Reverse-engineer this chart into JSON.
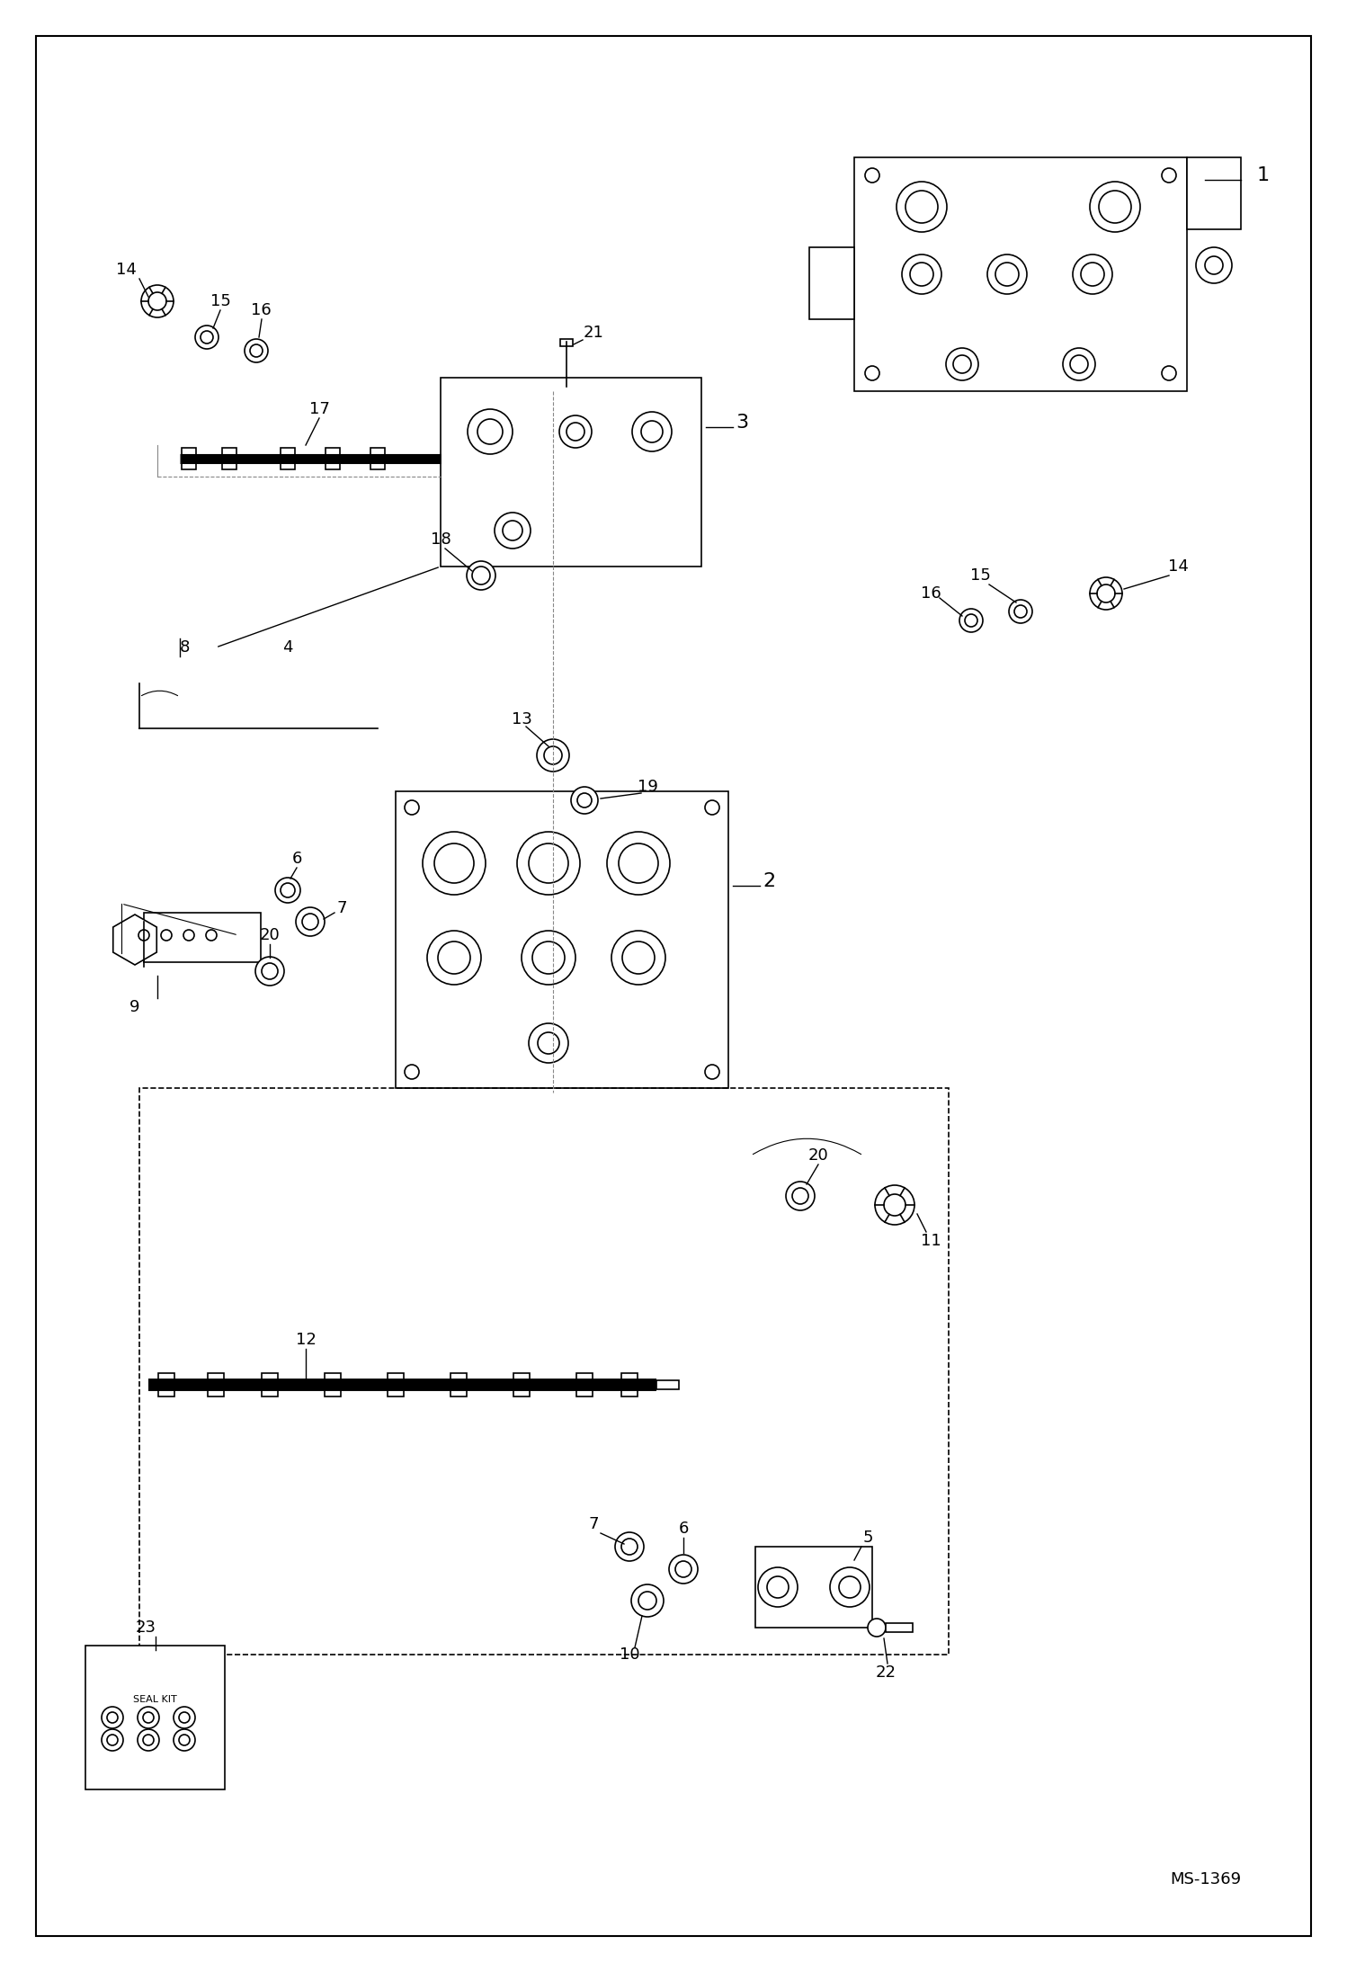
{
  "background_color": "#ffffff",
  "border_color": "#000000",
  "line_color": "#000000",
  "ms_label": "MS-1369",
  "fig_width": 14.98,
  "fig_height": 21.93,
  "dpi": 100
}
